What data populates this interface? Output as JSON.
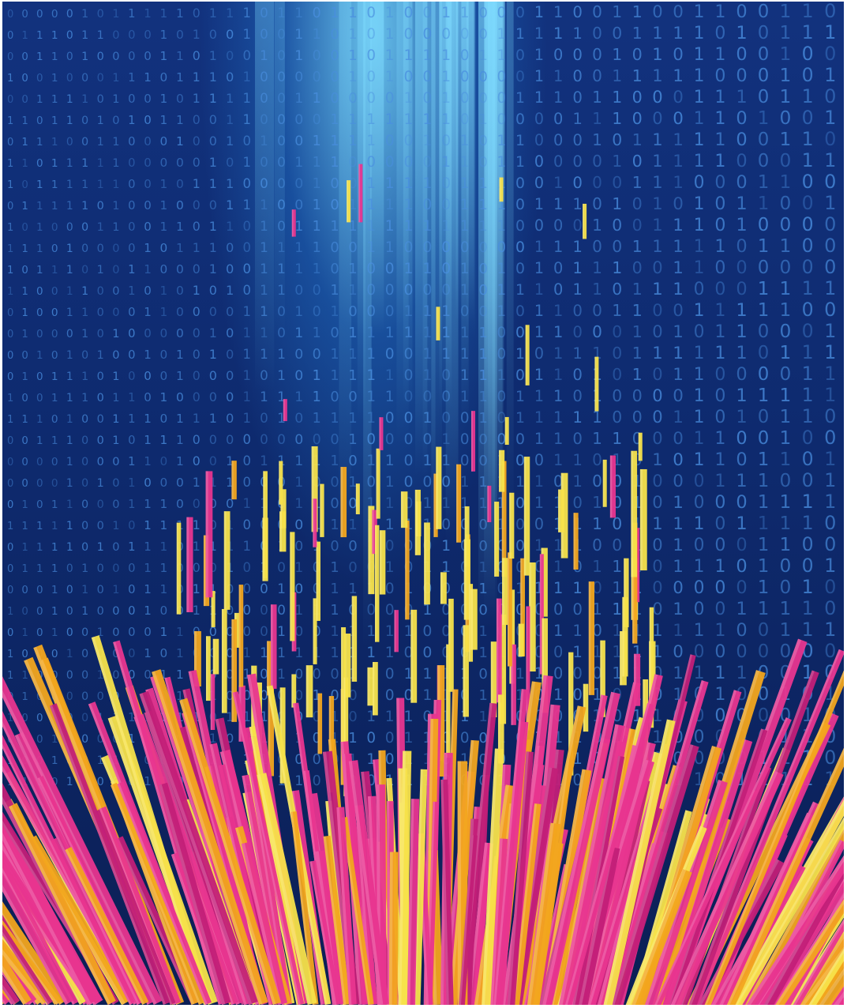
{
  "artwork": {
    "palette": {
      "background_top": "#12327e",
      "background_bottom": "#0b1f55",
      "glow": "#7fdcff",
      "digit_color": "#4a8fe0",
      "stream_pink": "#e8358f",
      "stream_magenta": "#c21f78",
      "stream_yellow": "#f7e24a",
      "stream_orange": "#f2a51e"
    },
    "binary_glyphs": [
      "0",
      "1"
    ],
    "icon": "binary-data-landscape"
  }
}
